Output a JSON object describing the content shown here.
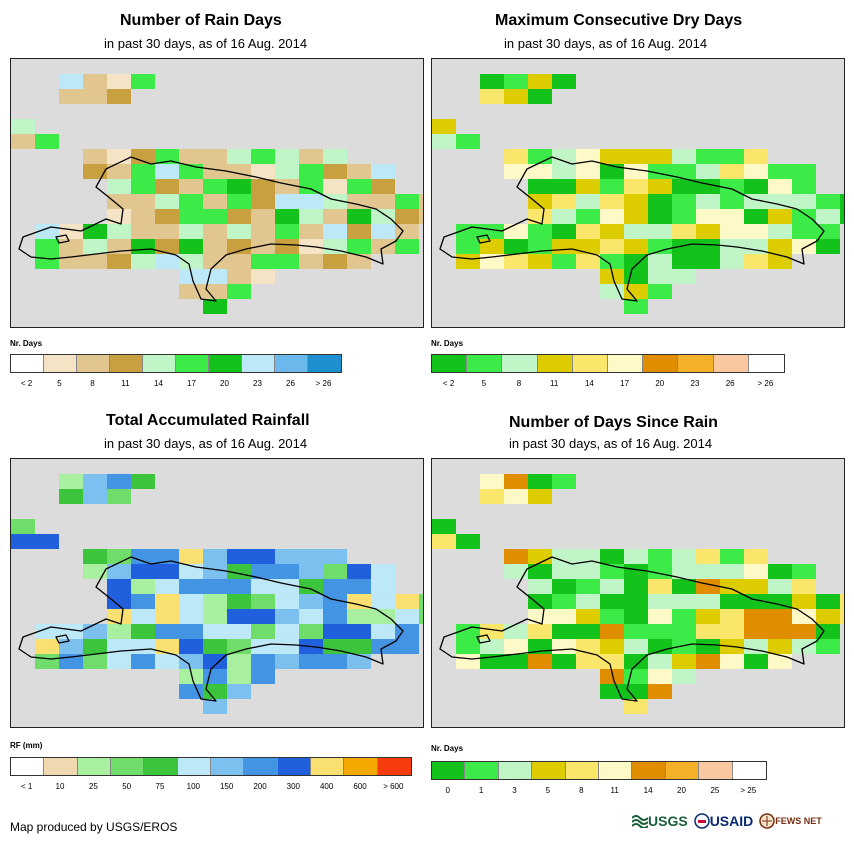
{
  "panels": [
    {
      "title": "Number of Rain Days",
      "subtitle": "in past 30 days, as of 16 Aug. 2014",
      "legend": {
        "unit": "Nr. Days",
        "colors": [
          "#ffffff",
          "#f5e3c5",
          "#e2c690",
          "#c9a040",
          "#c0f5c8",
          "#3ceb48",
          "#14c21c",
          "#bde8f8",
          "#6ab8ec",
          "#1e90d0"
        ],
        "labels": [
          "< 2",
          "5",
          "8",
          "11",
          "14",
          "17",
          "20",
          "23",
          "26",
          "> 26"
        ]
      }
    },
    {
      "title": "Maximum Consecutive Dry Days",
      "subtitle": "in past 30 days, as of 16 Aug. 2014",
      "legend": {
        "unit": "Nr. Days",
        "colors": [
          "#14c21c",
          "#3ceb48",
          "#c0f5c8",
          "#dccc00",
          "#fae66a",
          "#fff9c8",
          "#e08e00",
          "#f5b02a",
          "#fac8a0",
          "#ffffff"
        ],
        "labels": [
          "< 2",
          "5",
          "8",
          "11",
          "14",
          "17",
          "20",
          "23",
          "26",
          "> 26"
        ]
      }
    },
    {
      "title": "Total Accumulated Rainfall",
      "subtitle": "in past 30 days, as of 16 Aug. 2014",
      "legend": {
        "unit": "RF (mm)",
        "colors": [
          "#ffffff",
          "#f0d8b0",
          "#a8f0a0",
          "#70dc6a",
          "#3cc43c",
          "#bde8f8",
          "#7cc0f0",
          "#4494e4",
          "#2060dc",
          "#fae070",
          "#f5a800",
          "#f53c0a"
        ],
        "labels": [
          "< 1",
          "10",
          "25",
          "50",
          "75",
          "100",
          "150",
          "200",
          "300",
          "400",
          "600",
          "> 600"
        ]
      }
    },
    {
      "title": "Number of Days Since Rain",
      "subtitle": "in past 30 days, as of 16 Aug. 2014",
      "legend": {
        "unit": "Nr. Days",
        "colors": [
          "#14c21c",
          "#3ceb48",
          "#c0f5c8",
          "#dccc00",
          "#fae66a",
          "#fff9c8",
          "#e08e00",
          "#f5b02a",
          "#fac8a0",
          "#ffffff"
        ],
        "labels": [
          "0",
          "1",
          "3",
          "5",
          "8",
          "11",
          "14",
          "20",
          "25",
          "> 25"
        ]
      }
    }
  ],
  "credit": "Map produced by USGS/EROS",
  "logos": {
    "usgs": "USGS",
    "usaid": "USAID",
    "fews": "FEWS NET"
  }
}
